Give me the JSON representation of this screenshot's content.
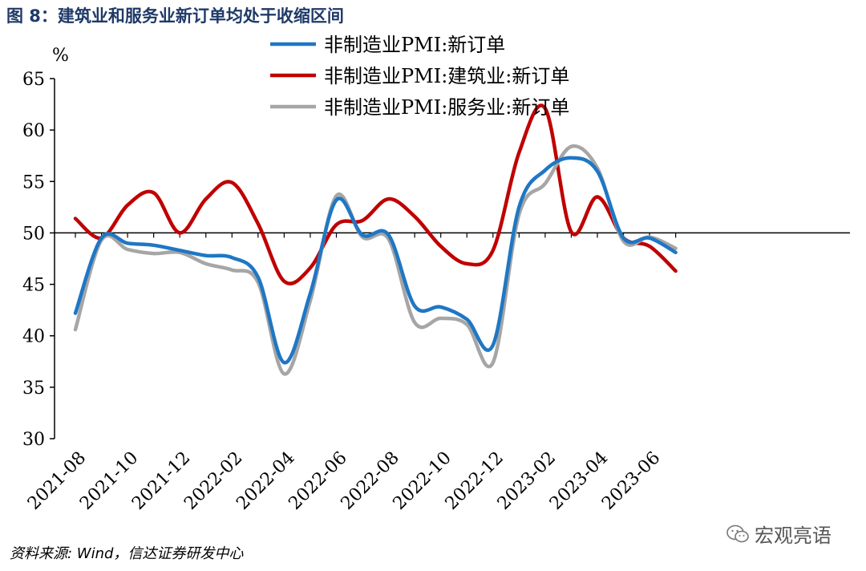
{
  "header": {
    "title": "图 8：建筑业和服务业新订单均处于收缩区间"
  },
  "footer": {
    "source": "资料来源: Wind，信达证券研发中心"
  },
  "watermark": {
    "text": "宏观亮语",
    "icon": "wechat-icon"
  },
  "chart_data": {
    "type": "line",
    "title": "图 8：建筑业和服务业新订单均处于收缩区间",
    "ylabel": "%",
    "xlabel": "",
    "ylim": [
      30,
      65
    ],
    "yticks": [
      30,
      35,
      40,
      45,
      50,
      55,
      60,
      65
    ],
    "reference_line": 50,
    "grid": false,
    "legend_position": "top-center",
    "x": [
      "2021-08",
      "2021-09",
      "2021-10",
      "2021-11",
      "2021-12",
      "2022-01",
      "2022-02",
      "2022-03",
      "2022-04",
      "2022-05",
      "2022-06",
      "2022-07",
      "2022-08",
      "2022-09",
      "2022-10",
      "2022-11",
      "2022-12",
      "2023-01",
      "2023-02",
      "2023-03",
      "2023-04",
      "2023-05",
      "2023-06",
      "2023-07"
    ],
    "xtick_labels": [
      "2021-08",
      "2021-10",
      "2021-12",
      "2022-02",
      "2022-04",
      "2022-06",
      "2022-08",
      "2022-10",
      "2022-12",
      "2023-02",
      "2023-04",
      "2023-06"
    ],
    "series": [
      {
        "name": "非制造业PMI:新订单",
        "color": "#1f77c4",
        "values": [
          42.2,
          49.5,
          49.0,
          48.8,
          48.3,
          47.8,
          47.6,
          45.7,
          37.4,
          44.1,
          53.2,
          49.8,
          49.8,
          42.9,
          42.8,
          41.6,
          39.1,
          52.5,
          56.1,
          57.3,
          56.0,
          49.5,
          49.5,
          48.1
        ]
      },
      {
        "name": "非制造业PMI:建筑业:新订单",
        "color": "#c00000",
        "values": [
          51.4,
          49.5,
          52.7,
          53.9,
          50.0,
          53.3,
          54.9,
          50.9,
          45.3,
          46.6,
          50.8,
          51.2,
          53.3,
          51.6,
          48.7,
          47.0,
          48.3,
          57.8,
          62.1,
          50.1,
          53.5,
          49.5,
          48.7,
          46.3
        ]
      },
      {
        "name": "非制造业PMI:服务业:新订单",
        "color": "#a6a6a6",
        "values": [
          40.6,
          49.3,
          48.4,
          48.0,
          48.1,
          47.0,
          46.4,
          45.2,
          36.3,
          43.4,
          53.6,
          49.6,
          49.4,
          41.3,
          41.7,
          41.1,
          37.4,
          51.8,
          54.8,
          58.4,
          56.3,
          49.2,
          49.6,
          48.5
        ]
      }
    ]
  }
}
